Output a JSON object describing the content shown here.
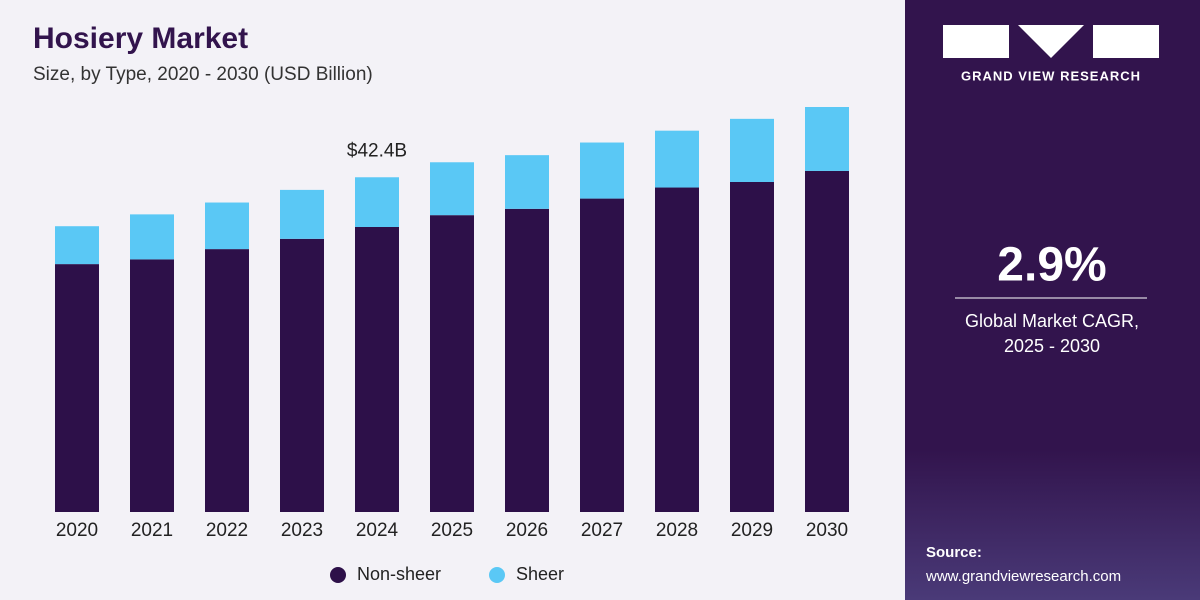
{
  "chart_data": {
    "type": "stacked-bar",
    "title": "Hosiery Market",
    "subtitle": "Size, by Type, 2020 - 2030 (USD Billion)",
    "categories": [
      "2020",
      "2021",
      "2022",
      "2023",
      "2024",
      "2025",
      "2026",
      "2027",
      "2028",
      "2029",
      "2030"
    ],
    "series": [
      {
        "name": "Non-sheer",
        "color": "#2d1049",
        "values": [
          31.4,
          32.0,
          33.3,
          34.6,
          36.1,
          37.6,
          38.4,
          39.7,
          41.1,
          41.8,
          43.2
        ]
      },
      {
        "name": "Sheer",
        "color": "#5ac8f5",
        "values": [
          4.8,
          5.7,
          5.9,
          6.2,
          6.3,
          6.7,
          6.8,
          7.1,
          7.2,
          8.0,
          8.1
        ]
      }
    ],
    "annotations": [
      {
        "x": "2024",
        "value": 42.4,
        "label": "$42.4B"
      }
    ]
  },
  "panel": {
    "brand": "GRAND VIEW RESEARCH",
    "cagr": "2.9%",
    "cagr_caption": [
      "Global Market CAGR,",
      "2025 - 2030"
    ],
    "source_label": "Source:",
    "source_url": "www.grandviewresearch.com"
  }
}
